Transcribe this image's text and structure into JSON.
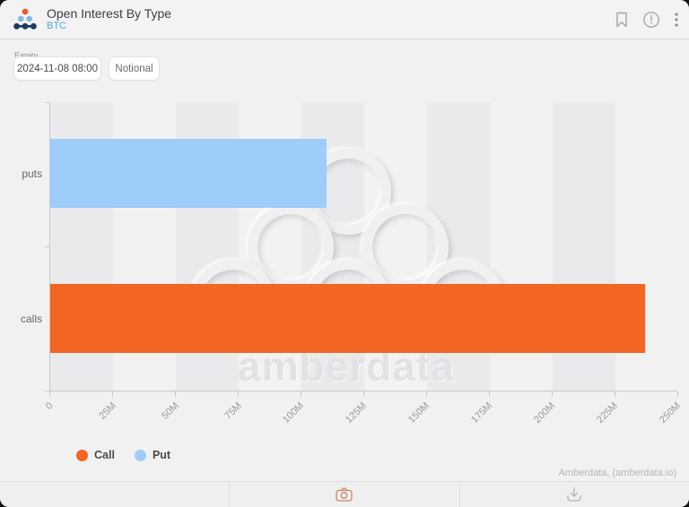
{
  "header": {
    "title": "Open Interest By Type",
    "subtitle": "BTC"
  },
  "controls": {
    "expiry_label": "Expiry",
    "expiry_value": "2024-11-08 08:00",
    "notional_label": "Notional"
  },
  "chart_data": {
    "type": "bar",
    "orientation": "horizontal",
    "title": "Open Interest By Type",
    "categories": [
      "puts",
      "calls"
    ],
    "series": [
      {
        "name": "Put",
        "category": "puts",
        "value": 110000000,
        "color": "#9dcdf8"
      },
      {
        "name": "Call",
        "category": "calls",
        "value": 237000000,
        "color": "#f26522"
      }
    ],
    "xlim": [
      0,
      250000000
    ],
    "xtick_labels": [
      "0",
      "25M",
      "50M",
      "75M",
      "100M",
      "125M",
      "150M",
      "175M",
      "200M",
      "225M",
      "250M"
    ],
    "legend": [
      {
        "label": "Call",
        "color": "#f26522"
      },
      {
        "label": "Put",
        "color": "#9dcdf8"
      }
    ],
    "grid": "vertical-bands",
    "legend_position": "bottom-left",
    "watermark": "amberdata"
  },
  "footer": {
    "attribution": "Amberdata, (amberdata.io)"
  },
  "colors": {
    "call_orange": "#f26522",
    "put_blue": "#9dcdf8",
    "subtitle_blue": "#58a6e4",
    "camera_orange": "#d0865e"
  }
}
